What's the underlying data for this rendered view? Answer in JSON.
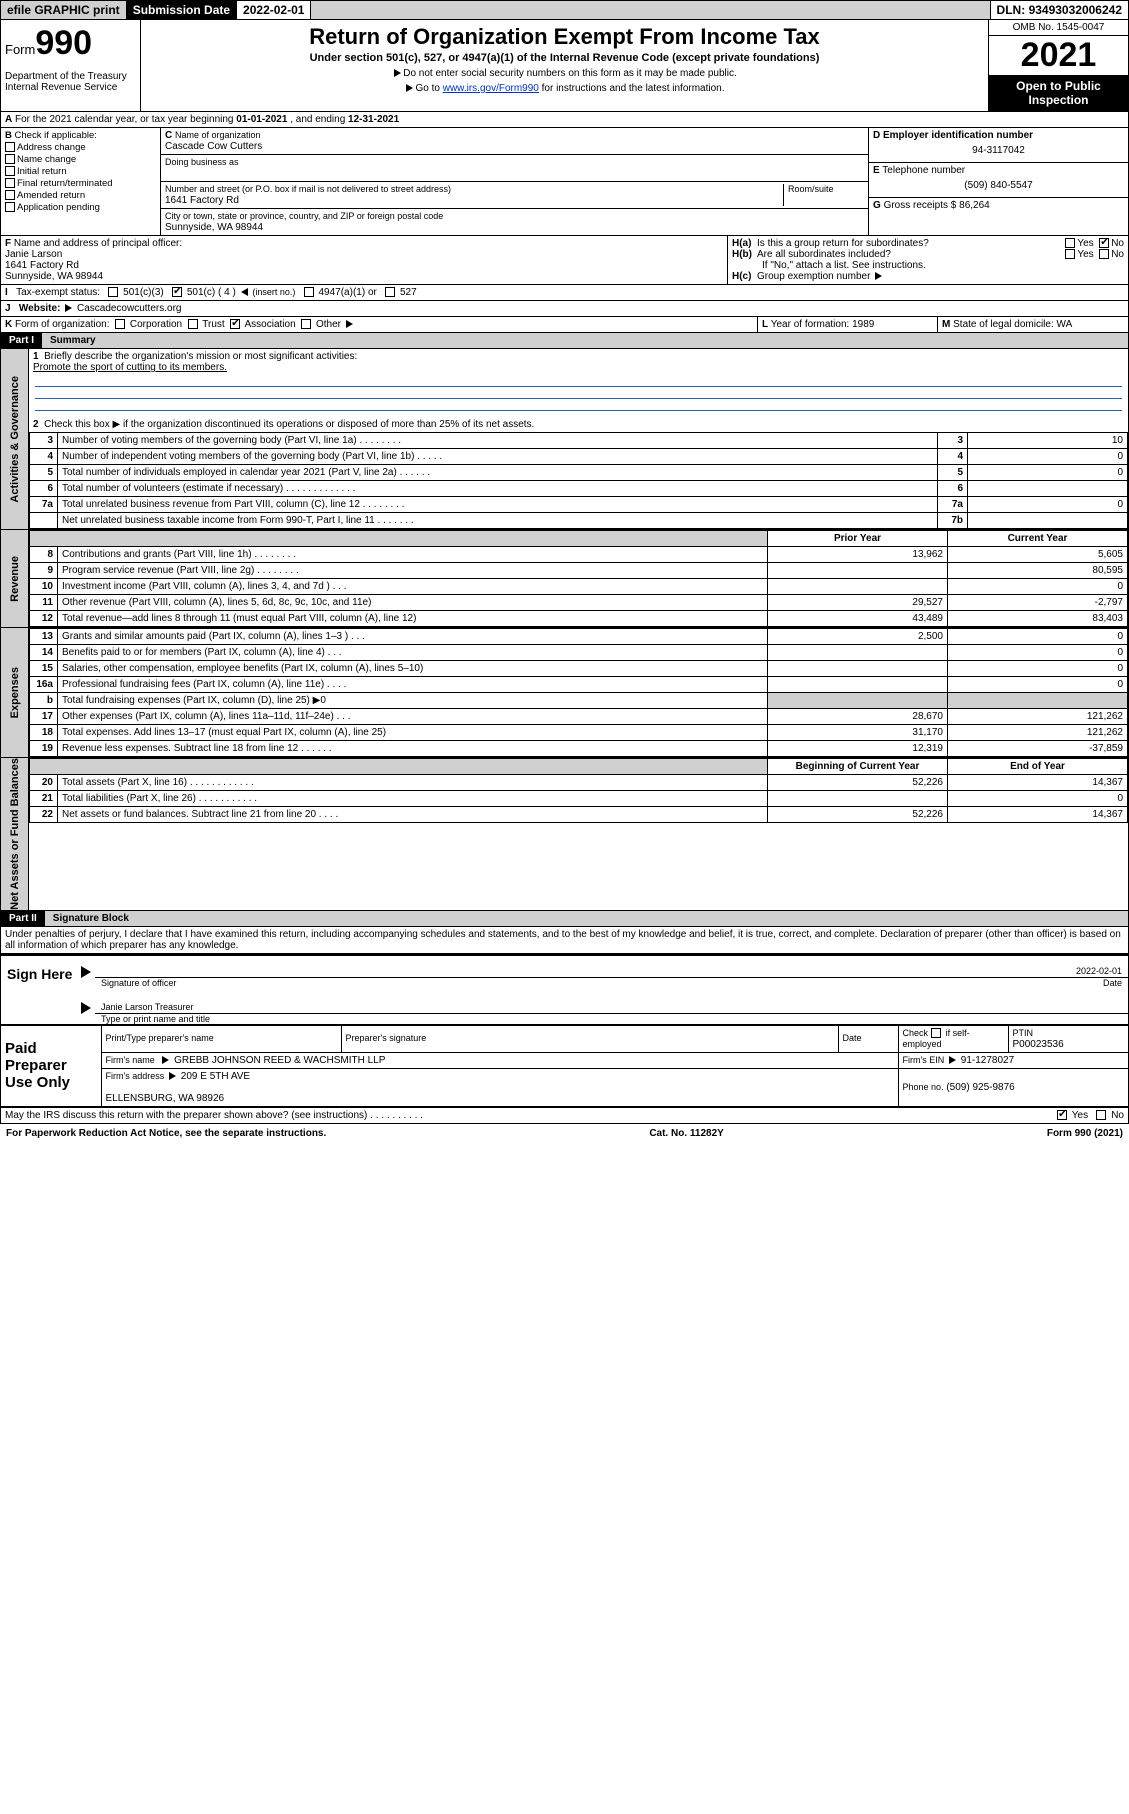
{
  "topbar": {
    "efile_btn": "efile GRAPHIC print",
    "sub_label": "Submission Date",
    "sub_date": "2022-02-01",
    "dln_label": "DLN:",
    "dln": "93493032006242"
  },
  "header": {
    "form_prefix": "Form",
    "form_no": "990",
    "dept1": "Department of the Treasury",
    "dept2": "Internal Revenue Service",
    "title": "Return of Organization Exempt From Income Tax",
    "sub": "Under section 501(c), 527, or 4947(a)(1) of the Internal Revenue Code (except private foundations)",
    "note1": "Do not enter social security numbers on this form as it may be made public.",
    "note2_pre": "Go to ",
    "note2_link": "www.irs.gov/Form990",
    "note2_post": " for instructions and the latest information.",
    "omb": "OMB No. 1545-0047",
    "year": "2021",
    "open": "Open to Public Inspection"
  },
  "A": {
    "text_pre": "For the 2021 calendar year, or tax year beginning ",
    "begin": "01-01-2021",
    "mid": " , and ending ",
    "end": "12-31-2021"
  },
  "B": {
    "label": "Check if applicable:",
    "opts": [
      "Address change",
      "Name change",
      "Initial return",
      "Final return/terminated",
      "Amended return",
      "Application pending"
    ]
  },
  "C": {
    "name_lbl": "Name of organization",
    "name": "Cascade Cow Cutters",
    "dba_lbl": "Doing business as",
    "addr_lbl": "Number and street (or P.O. box if mail is not delivered to street address)",
    "room_lbl": "Room/suite",
    "addr": "1641 Factory Rd",
    "city_lbl": "City or town, state or province, country, and ZIP or foreign postal code",
    "city": "Sunnyside, WA  98944"
  },
  "D": {
    "lbl": "Employer identification number",
    "val": "94-3117042"
  },
  "E": {
    "lbl": "Telephone number",
    "val": "(509) 840-5547"
  },
  "G": {
    "lbl": "Gross receipts $",
    "val": "86,264"
  },
  "F": {
    "lbl": "Name and address of principal officer:",
    "name": "Janie Larson",
    "addr1": "1641 Factory Rd",
    "addr2": "Sunnyside, WA  98944"
  },
  "H": {
    "a_lbl": "Is this a group return for subordinates?",
    "a_yes": "Yes",
    "a_no": "No",
    "b_lbl": "Are all subordinates included?",
    "b_yes": "Yes",
    "b_no": "No",
    "note": "If \"No,\" attach a list. See instructions.",
    "c_lbl": "Group exemption number"
  },
  "I": {
    "lbl": "Tax-exempt status:",
    "o1": "501(c)(3)",
    "o2": "501(c) ( 4 )",
    "o2_aside": "(insert no.)",
    "o3": "4947(a)(1) or",
    "o4": "527"
  },
  "J": {
    "lbl": "Website:",
    "val": "Cascadecowcutters.org"
  },
  "K": {
    "lbl": "Form of organization:",
    "opts": [
      "Corporation",
      "Trust",
      "Association",
      "Other"
    ],
    "checked_idx": 2
  },
  "L": {
    "lbl": "Year of formation:",
    "val": "1989"
  },
  "M": {
    "lbl": "State of legal domicile:",
    "val": "WA"
  },
  "partI": {
    "hdr": "Part I",
    "title": "Summary",
    "q1": "Briefly describe the organization's mission or most significant activities:",
    "mission": "Promote the sport of cutting to its members.",
    "q2": "Check this box ▶  if the organization discontinued its operations or disposed of more than 25% of its net assets.",
    "rows_gov": [
      {
        "n": "3",
        "t": "Number of voting members of the governing body (Part VI, line 1a)  .   .   .   .   .   .   .   .",
        "box": "3",
        "v": "10"
      },
      {
        "n": "4",
        "t": "Number of independent voting members of the governing body (Part VI, line 1b)  .   .   .   .   .",
        "box": "4",
        "v": "0"
      },
      {
        "n": "5",
        "t": "Total number of individuals employed in calendar year 2021 (Part V, line 2a)  .   .   .   .   .   .",
        "box": "5",
        "v": "0"
      },
      {
        "n": "6",
        "t": "Total number of volunteers (estimate if necessary)  .   .   .   .   .   .   .   .   .   .   .   .   .",
        "box": "6",
        "v": ""
      },
      {
        "n": "7a",
        "t": "Total unrelated business revenue from Part VIII, column (C), line 12  .   .   .   .   .   .   .   .",
        "box": "7a",
        "v": "0"
      },
      {
        "n": "",
        "t": "Net unrelated business taxable income from Form 990-T, Part I, line 11  .   .   .   .   .   .   .",
        "box": "7b",
        "v": ""
      }
    ],
    "th_prior": "Prior Year",
    "th_curr": "Current Year",
    "rows_rev": [
      {
        "n": "8",
        "t": "Contributions and grants (Part VIII, line 1h)  .   .   .   .   .   .   .   .",
        "p": "13,962",
        "c": "5,605"
      },
      {
        "n": "9",
        "t": "Program service revenue (Part VIII, line 2g)  .   .   .   .   .   .   .   .",
        "p": "",
        "c": "80,595"
      },
      {
        "n": "10",
        "t": "Investment income (Part VIII, column (A), lines 3, 4, and 7d )  .   .   .",
        "p": "",
        "c": "0"
      },
      {
        "n": "11",
        "t": "Other revenue (Part VIII, column (A), lines 5, 6d, 8c, 9c, 10c, and 11e)",
        "p": "29,527",
        "c": "-2,797"
      },
      {
        "n": "12",
        "t": "Total revenue—add lines 8 through 11 (must equal Part VIII, column (A), line 12)",
        "p": "43,489",
        "c": "83,403"
      }
    ],
    "rows_exp": [
      {
        "n": "13",
        "t": "Grants and similar amounts paid (Part IX, column (A), lines 1–3 )  .   .   .",
        "p": "2,500",
        "c": "0"
      },
      {
        "n": "14",
        "t": "Benefits paid to or for members (Part IX, column (A), line 4)  .   .   .",
        "p": "",
        "c": "0"
      },
      {
        "n": "15",
        "t": "Salaries, other compensation, employee benefits (Part IX, column (A), lines 5–10)",
        "p": "",
        "c": "0"
      },
      {
        "n": "16a",
        "t": "Professional fundraising fees (Part IX, column (A), line 11e)  .   .   .   .",
        "p": "",
        "c": "0"
      },
      {
        "n": "b",
        "t": "Total fundraising expenses (Part IX, column (D), line 25) ▶0",
        "p": "shade",
        "c": "shade"
      },
      {
        "n": "17",
        "t": "Other expenses (Part IX, column (A), lines 11a–11d, 11f–24e)  .   .   .",
        "p": "28,670",
        "c": "121,262"
      },
      {
        "n": "18",
        "t": "Total expenses. Add lines 13–17 (must equal Part IX, column (A), line 25)",
        "p": "31,170",
        "c": "121,262"
      },
      {
        "n": "19",
        "t": "Revenue less expenses. Subtract line 18 from line 12  .   .   .   .   .   .",
        "p": "12,319",
        "c": "-37,859"
      }
    ],
    "th_begin": "Beginning of Current Year",
    "th_end": "End of Year",
    "rows_net": [
      {
        "n": "20",
        "t": "Total assets (Part X, line 16)  .   .   .   .   .   .   .   .   .   .   .   .",
        "p": "52,226",
        "c": "14,367"
      },
      {
        "n": "21",
        "t": "Total liabilities (Part X, line 26)  .   .   .   .   .   .   .   .   .   .   .",
        "p": "",
        "c": "0"
      },
      {
        "n": "22",
        "t": "Net assets or fund balances. Subtract line 21 from line 20  .   .   .   .",
        "p": "52,226",
        "c": "14,367"
      }
    ],
    "tab_gov": "Activities & Governance",
    "tab_rev": "Revenue",
    "tab_exp": "Expenses",
    "tab_net": "Net Assets or Fund Balances"
  },
  "partII": {
    "hdr": "Part II",
    "title": "Signature Block",
    "decl": "Under penalties of perjury, I declare that I have examined this return, including accompanying schedules and statements, and to the best of my knowledge and belief, it is true, correct, and complete. Declaration of preparer (other than officer) is based on all information of which preparer has any knowledge."
  },
  "sign": {
    "here": "Sign Here",
    "sig_lbl": "Signature of officer",
    "date_lbl": "Date",
    "date_val": "2022-02-01",
    "name": "Janie Larson  Treasurer",
    "name_lbl": "Type or print name and title"
  },
  "prep": {
    "label": "Paid Preparer Use Only",
    "h1": "Print/Type preparer's name",
    "h2": "Preparer's signature",
    "h3": "Date",
    "h4_chk": "Check",
    "h4_if": "if self-employed",
    "h5": "PTIN",
    "ptin": "P00023536",
    "firm_name_lbl": "Firm's name",
    "firm_name": "GREBB JOHNSON REED & WACHSMITH LLP",
    "firm_ein_lbl": "Firm's EIN",
    "firm_ein": "91-1278027",
    "firm_addr_lbl": "Firm's address",
    "firm_addr1": "209 E 5TH AVE",
    "firm_addr2": "ELLENSBURG, WA  98926",
    "phone_lbl": "Phone no.",
    "phone": "(509) 925-9876"
  },
  "discuss": {
    "q": "May the IRS discuss this return with the preparer shown above? (see instructions)  .   .   .   .   .   .   .   .   .   .",
    "yes": "Yes",
    "no": "No"
  },
  "footer": {
    "left": "For Paperwork Reduction Act Notice, see the separate instructions.",
    "mid": "Cat. No. 11282Y",
    "right": "Form 990 (2021)"
  }
}
